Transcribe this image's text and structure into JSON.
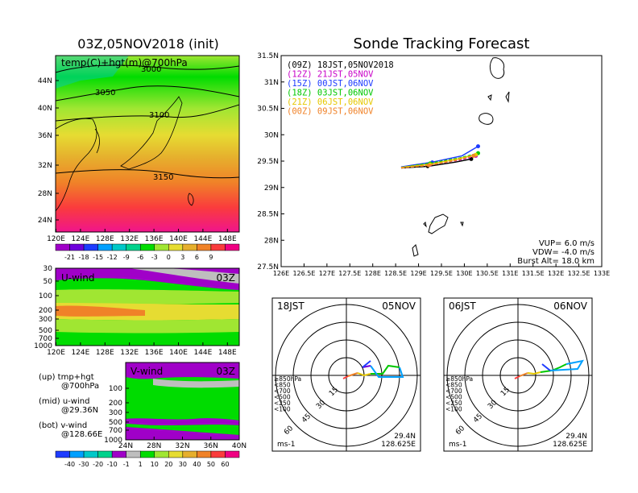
{
  "chart_data": [
    {
      "type": "heatmap",
      "title": "03Z,05NOV2018 (init)",
      "field_label": "temp(C)+hgt(m)@700hPa",
      "x_ticks": [
        "120E",
        "124E",
        "128E",
        "132E",
        "136E",
        "140E",
        "144E",
        "148E"
      ],
      "y_ticks": [
        "44N",
        "40N",
        "36N",
        "32N",
        "28N",
        "24N"
      ],
      "contours": [
        "3000",
        "3050",
        "3100",
        "3150"
      ],
      "colorbar_labels": [
        "-21",
        "-18",
        "-15",
        "-12",
        "-9",
        "-6",
        "-3",
        "0",
        "3",
        "6",
        "9"
      ],
      "colorbar_colors": [
        "#a000c8",
        "#6e00dc",
        "#1e3cff",
        "#00a0ff",
        "#00c8c8",
        "#00d28c",
        "#00dc00",
        "#a0e632",
        "#e6dc32",
        "#e6af2d",
        "#f08228",
        "#fa3c3c",
        "#f00082"
      ]
    },
    {
      "type": "heatmap",
      "panel": "U-wind",
      "time": "03Z",
      "x_ticks": [
        "120E",
        "124E",
        "128E",
        "132E",
        "136E",
        "140E",
        "144E",
        "148E"
      ],
      "y_ticks": [
        "30",
        "50",
        "100",
        "200",
        "300",
        "500",
        "700",
        "1000"
      ]
    },
    {
      "type": "heatmap",
      "panel": "V-wind",
      "time": "03Z",
      "x_ticks": [
        "24N",
        "28N",
        "32N",
        "36N",
        "40N"
      ],
      "y_ticks": [
        "100",
        "200",
        "300",
        "500",
        "700",
        "1000"
      ],
      "colorbar_labels": [
        "-40",
        "-30",
        "-20",
        "-10",
        "-1",
        "1",
        "10",
        "20",
        "30",
        "40",
        "50",
        "60"
      ],
      "colorbar_colors": [
        "#1e3cff",
        "#00a0ff",
        "#00c8c8",
        "#00d28c",
        "#a000c8",
        "#bebebe",
        "#00dc00",
        "#a0e632",
        "#e6dc32",
        "#e6af2d",
        "#f08228",
        "#fa3c3c",
        "#f00082"
      ]
    },
    {
      "type": "line",
      "title": "Sonde Tracking Forecast",
      "x_ticks": [
        "126E",
        "126.5E",
        "127E",
        "127.5E",
        "128E",
        "128.5E",
        "129E",
        "129.5E",
        "130E",
        "130.5E",
        "131E",
        "131.5E",
        "132E",
        "132.5E",
        "133E"
      ],
      "y_ticks": [
        "31.5N",
        "31N",
        "30.5N",
        "30N",
        "29.5N",
        "29N",
        "28.5N",
        "28N",
        "27.5N"
      ],
      "xlim": [
        126,
        133
      ],
      "ylim": [
        27.5,
        31.5
      ],
      "series": [
        {
          "name": "(09Z) 18JST,05NOV2018",
          "color": "#000000",
          "x": [
            128.62,
            129.2,
            129.8,
            130.15
          ],
          "y": [
            29.37,
            29.4,
            29.48,
            29.54
          ]
        },
        {
          "name": "(12Z) 21JST,05NOV",
          "color": "#c800c8",
          "x": [
            128.62,
            129.25,
            129.9,
            130.25
          ],
          "y": [
            29.38,
            29.43,
            29.52,
            29.6
          ]
        },
        {
          "name": "(15Z) 00JST,06NOV",
          "color": "#1e3cff",
          "x": [
            128.62,
            129.3,
            129.95,
            130.3
          ],
          "y": [
            29.39,
            29.48,
            29.6,
            29.78
          ]
        },
        {
          "name": "(18Z) 03JST,06NOV",
          "color": "#00c800",
          "x": [
            128.62,
            129.25,
            129.9,
            130.3
          ],
          "y": [
            29.38,
            29.46,
            29.56,
            29.65
          ]
        },
        {
          "name": "(21Z) 06JST,06NOV",
          "color": "#e6c800",
          "x": [
            128.62,
            129.25,
            129.85,
            130.25
          ],
          "y": [
            29.38,
            29.44,
            29.54,
            29.62
          ]
        },
        {
          "name": "(00Z) 09JST,06NOV",
          "color": "#f08228",
          "x": [
            128.62,
            129.22,
            129.85,
            130.2
          ],
          "y": [
            29.37,
            29.42,
            29.52,
            29.6
          ]
        }
      ],
      "params": [
        "VUP=  6.0  m/s",
        "VDW= -4.0  m/s",
        "Burst Alt=  18.0  km"
      ]
    }
  ],
  "hodographs": [
    {
      "time": "18JST",
      "date": "05NOV",
      "rings": [
        "15",
        "30",
        "45",
        "60"
      ],
      "unit": "ms-1",
      "lat": "29.4N",
      "lon": "128.625E"
    },
    {
      "time": "06JST",
      "date": "06NOV",
      "rings": [
        "15",
        "30",
        "45",
        "60"
      ],
      "unit": "ms-1",
      "lat": "29.4N",
      "lon": "128.625E"
    }
  ],
  "hodo_legend": [
    {
      "label": "≥850hPa",
      "color": "#fa3c3c"
    },
    {
      "label": "<850",
      "color": "#f08228"
    },
    {
      "label": "<700",
      "color": "#e6c800"
    },
    {
      "label": "<500",
      "color": "#00c800"
    },
    {
      "label": "<250",
      "color": "#00a0ff"
    },
    {
      "label": "<100",
      "color": "#6e00dc"
    }
  ],
  "notes": {
    "up": "(up) tmp+hgt",
    "up2": "@700hPa",
    "mid": "(mid) u-wind",
    "mid2": "@29.36N",
    "bot": "(bot) v-wind",
    "bot2": "@128.66E"
  }
}
